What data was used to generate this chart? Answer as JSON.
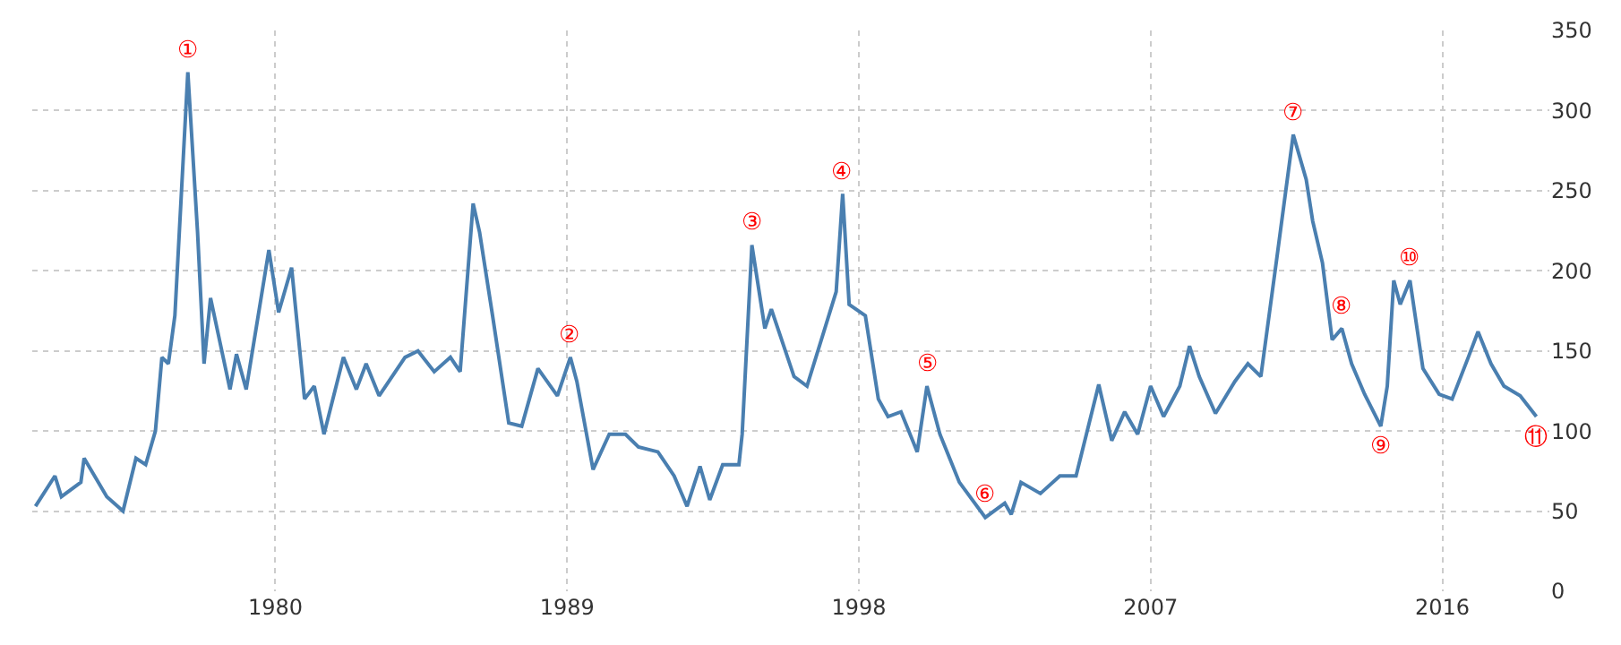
{
  "chart_data": {
    "type": "line",
    "x": [
      1972.6,
      1973.2,
      1973.4,
      1974.0,
      1974.1,
      1974.8,
      1975.3,
      1975.7,
      1976.0,
      1976.3,
      1976.5,
      1976.7,
      1976.9,
      1977.3,
      1977.6,
      1977.8,
      1978.0,
      1978.6,
      1978.8,
      1979.1,
      1979.8,
      1980.1,
      1980.5,
      1980.9,
      1981.2,
      1981.5,
      1982.1,
      1982.5,
      1982.8,
      1983.2,
      1984.0,
      1984.4,
      1984.9,
      1985.4,
      1985.7,
      1986.1,
      1986.3,
      1986.7,
      1987.2,
      1987.6,
      1988.1,
      1988.7,
      1989.1,
      1989.3,
      1989.8,
      1990.3,
      1990.8,
      1991.2,
      1991.8,
      1992.3,
      1992.7,
      1993.1,
      1993.4,
      1993.8,
      1994.3,
      1994.4,
      1994.7,
      1995.1,
      1995.3,
      1996.0,
      1996.4,
      1997.3,
      1997.5,
      1997.7,
      1998.2,
      1998.6,
      1998.9,
      1999.3,
      1999.8,
      2000.1,
      2000.5,
      2001.1,
      2001.9,
      2002.5,
      2002.7,
      2003.0,
      2003.6,
      2004.2,
      2004.7,
      2005.4,
      2005.8,
      2006.2,
      2006.6,
      2007.0,
      2007.4,
      2007.9,
      2008.2,
      2008.5,
      2009.0,
      2009.6,
      2010.0,
      2010.4,
      2010.9,
      2011.4,
      2011.8,
      2012.0,
      2012.3,
      2012.6,
      2012.9,
      2013.2,
      2013.6,
      2014.1,
      2014.3,
      2014.5,
      2014.7,
      2015.0,
      2015.4,
      2015.9,
      2016.3,
      2016.8,
      2017.1,
      2017.5,
      2017.9,
      2018.4,
      2018.9
    ],
    "series": [
      {
        "color": "#4a7fb0",
        "values": [
          53,
          72,
          59,
          68,
          83,
          59,
          50,
          83,
          79,
          100,
          146,
          142,
          172,
          324,
          224,
          142,
          183,
          126,
          148,
          126,
          213,
          174,
          202,
          120,
          128,
          98,
          146,
          126,
          142,
          122,
          146,
          150,
          137,
          146,
          137,
          242,
          224,
          172,
          105,
          103,
          139,
          122,
          146,
          131,
          76,
          98,
          98,
          90,
          87,
          72,
          53,
          78,
          57,
          79,
          79,
          98,
          216,
          164,
          176,
          134,
          128,
          187,
          248,
          179,
          172,
          120,
          109,
          112,
          87,
          128,
          98,
          68,
          46,
          55,
          48,
          68,
          61,
          72,
          72,
          129,
          94,
          112,
          98,
          128,
          109,
          128,
          153,
          134,
          111,
          131,
          142,
          134,
          209,
          285,
          257,
          231,
          205,
          157,
          164,
          142,
          123,
          103,
          128,
          194,
          179,
          194,
          139,
          123,
          120,
          146,
          162,
          142,
          128,
          122,
          109
        ]
      }
    ],
    "xlim": [
      1972.5,
      2019.3
    ],
    "xticks": [
      1980,
      1989,
      1998,
      2007,
      2016
    ],
    "ylim": [
      0,
      350
    ],
    "yticks": [
      0,
      50,
      100,
      150,
      200,
      250,
      300,
      350
    ],
    "grid": true,
    "marker": "none",
    "line_style": "solid",
    "annotations": [
      {
        "text": "①",
        "x": 1977.3,
        "y": 324
      },
      {
        "text": "②",
        "x": 1989.1,
        "y": 146
      },
      {
        "text": "③",
        "x": 1994.7,
        "y": 216
      },
      {
        "text": "④",
        "x": 1997.5,
        "y": 248
      },
      {
        "text": "⑤",
        "x": 2000.1,
        "y": 128
      },
      {
        "text": "⑥",
        "x": 2001.9,
        "y": 46
      },
      {
        "text": "⑦",
        "x": 2011.4,
        "y": 285
      },
      {
        "text": "⑧",
        "x": 2012.9,
        "y": 164
      },
      {
        "text": "⑨",
        "x": 2014.1,
        "y": 103
      },
      {
        "text": "⑩",
        "x": 2015.0,
        "y": 194
      },
      {
        "text": "⑪",
        "x": 2018.9,
        "y": 109
      }
    ]
  }
}
